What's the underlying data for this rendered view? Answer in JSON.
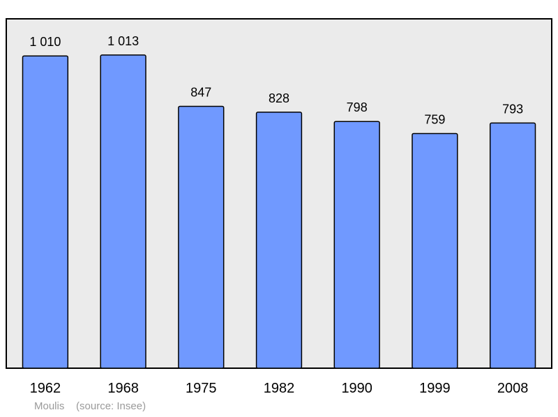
{
  "chart_data": {
    "type": "bar",
    "categories": [
      "1962",
      "1968",
      "1975",
      "1982",
      "1990",
      "1999",
      "2008"
    ],
    "values": [
      1010,
      1013,
      847,
      828,
      798,
      759,
      793
    ],
    "value_labels": [
      "1 010",
      "1 013",
      "847",
      "828",
      "798",
      "759",
      "793"
    ],
    "title": "",
    "xlabel": "",
    "ylabel": "",
    "ylim": [
      0,
      1130
    ],
    "grid": false,
    "bar_color": "#7099ff",
    "background_color": "#ebebeb"
  },
  "footer": {
    "place": "Moulis",
    "source": "(source: Insee)"
  }
}
